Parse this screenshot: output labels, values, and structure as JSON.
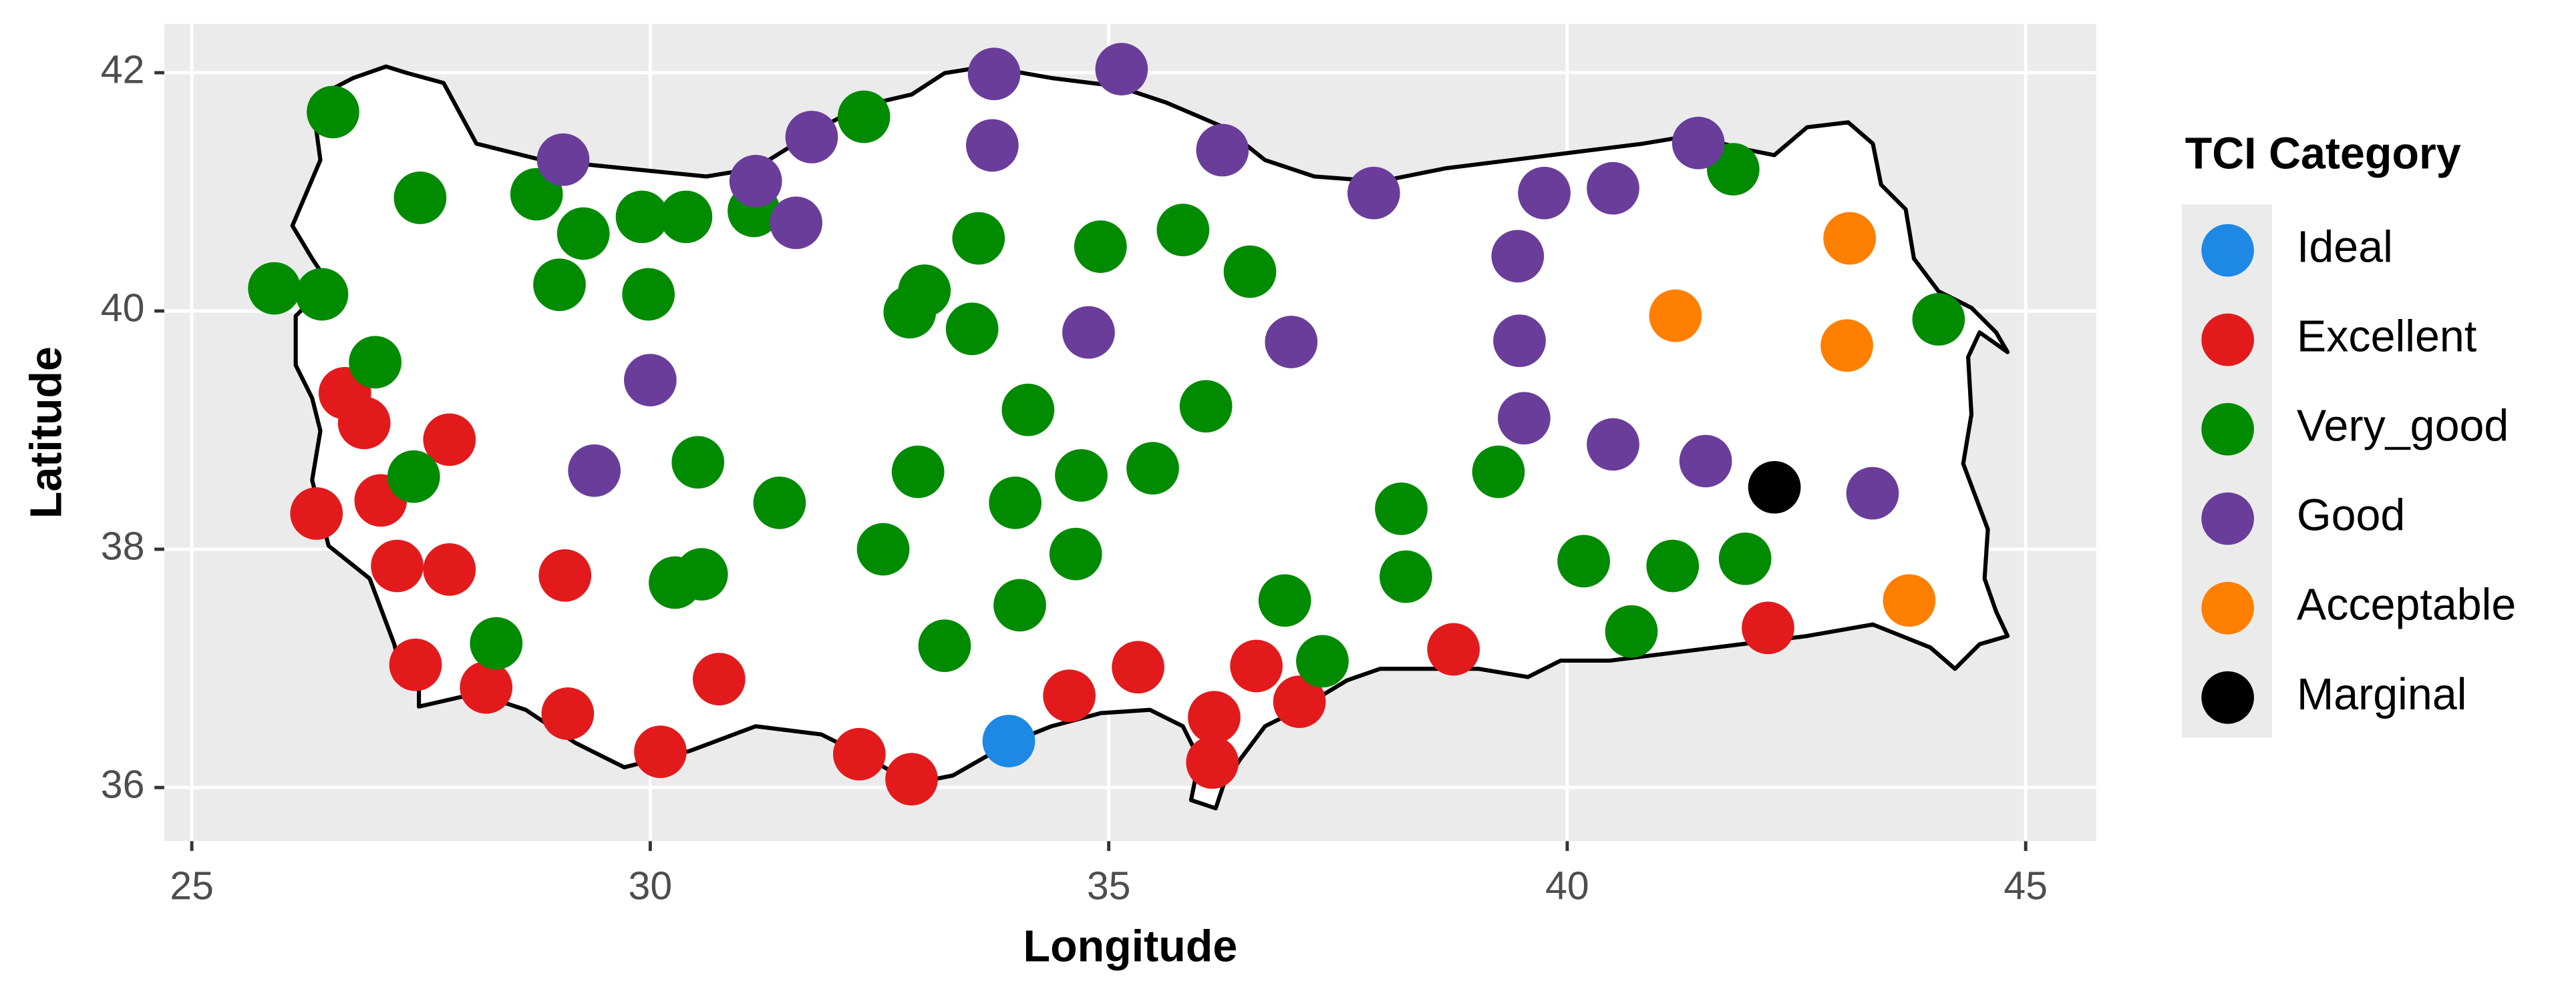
{
  "chart_data": {
    "type": "scatter",
    "x_label": "Longitude",
    "y_label": "Latitude",
    "legend_title": "TCI Category",
    "xlim": [
      24.7,
      45.77
    ],
    "ylim": [
      35.55,
      42.41
    ],
    "xticks": [
      25,
      30,
      35,
      40,
      45
    ],
    "yticks": [
      36,
      38,
      40,
      42
    ],
    "grid": true,
    "legend": "right",
    "series": [
      {
        "name": "Ideal",
        "color": "#1e88e5",
        "x": [
          33.91
        ],
        "values": [
          36.39
        ]
      },
      {
        "name": "Excellent",
        "color": "#e31a1c",
        "x": [
          26.67,
          26.88,
          27.81,
          27.06,
          26.36,
          27.24,
          27.81,
          29.07,
          27.44,
          28.21,
          29.1,
          30.11,
          30.75,
          32.28,
          32.85,
          34.57,
          35.32,
          36.15,
          36.13,
          36.61,
          37.08,
          38.76,
          42.19
        ],
        "values": [
          39.31,
          39.06,
          38.92,
          38.41,
          38.3,
          37.86,
          37.83,
          37.78,
          37.03,
          36.84,
          36.62,
          36.3,
          36.91,
          36.28,
          36.07,
          36.77,
          37.01,
          36.59,
          36.21,
          37.02,
          36.72,
          37.16,
          37.34
        ]
      },
      {
        "name": "Very_good",
        "color": "#008b00",
        "x": [
          26.54,
          25.9,
          26.42,
          27.49,
          27.0,
          27.42,
          28.32,
          28.76,
          29.27,
          29.01,
          29.91,
          30.39,
          29.98,
          31.13,
          32.33,
          30.52,
          31.41,
          30.27,
          30.56,
          33.58,
          32.99,
          32.83,
          33.51,
          34.91,
          35.81,
          36.54,
          34.12,
          36.06,
          32.92,
          33.98,
          34.7,
          35.48,
          32.54,
          34.64,
          34.03,
          33.21,
          36.92,
          37.33,
          38.19,
          38.24,
          39.25,
          40.18,
          41.15,
          41.94,
          40.7,
          41.81,
          44.05
        ],
        "values": [
          41.67,
          40.19,
          40.14,
          40.95,
          39.57,
          38.61,
          37.21,
          40.98,
          40.65,
          40.22,
          40.79,
          40.79,
          40.14,
          40.84,
          41.63,
          38.73,
          38.39,
          37.72,
          37.79,
          40.61,
          40.17,
          39.99,
          39.85,
          40.54,
          40.68,
          40.33,
          39.17,
          39.2,
          38.65,
          38.39,
          38.62,
          38.68,
          38.0,
          37.96,
          37.53,
          37.19,
          37.57,
          37.06,
          38.34,
          37.77,
          38.65,
          37.9,
          37.86,
          37.92,
          37.31,
          41.19,
          39.93
        ]
      },
      {
        "name": "Good",
        "color": "#6a3d9a",
        "x": [
          29.05,
          31.15,
          31.59,
          31.76,
          33.75,
          33.73,
          35.14,
          36.24,
          37.89,
          39.75,
          40.5,
          41.43,
          39.46,
          39.48,
          39.53,
          36.99,
          34.78,
          30.0,
          29.39,
          40.5,
          41.51,
          43.33
        ],
        "values": [
          41.27,
          41.09,
          40.74,
          41.46,
          41.99,
          41.39,
          42.03,
          41.35,
          40.99,
          40.99,
          41.03,
          41.41,
          40.46,
          39.75,
          39.1,
          39.74,
          39.82,
          39.42,
          38.66,
          38.88,
          38.74,
          38.47
        ]
      },
      {
        "name": "Acceptable",
        "color": "#ff7f00",
        "x": [
          43.08,
          41.18,
          43.05,
          43.73
        ],
        "values": [
          40.61,
          39.96,
          39.71,
          37.57
        ]
      },
      {
        "name": "Marginal",
        "color": "#000000",
        "x": [
          42.26
        ],
        "values": [
          38.52
        ]
      }
    ]
  }
}
